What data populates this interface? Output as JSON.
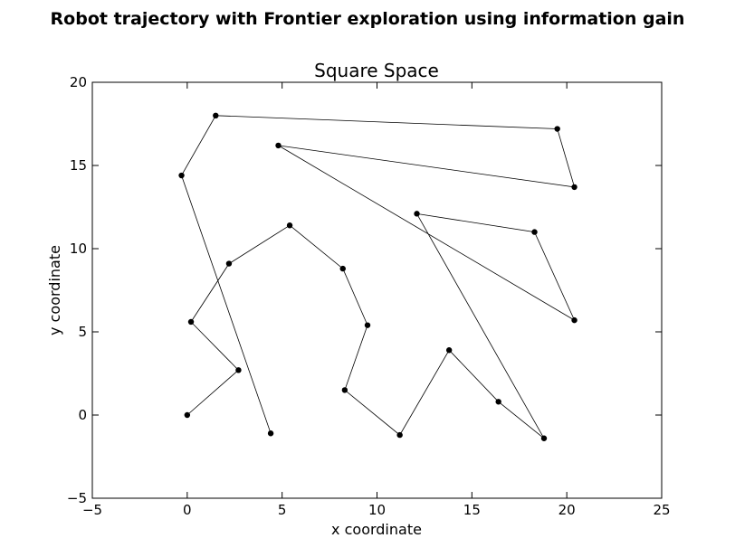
{
  "chart_data": {
    "type": "line",
    "suptitle": "Robot trajectory with Frontier exploration using information gain",
    "title": "Square Space",
    "xlabel": "x coordinate",
    "ylabel": "y coordinate",
    "xlim": [
      -5,
      25
    ],
    "ylim": [
      -5,
      20
    ],
    "xticks": [
      -5,
      0,
      5,
      10,
      15,
      20,
      25
    ],
    "yticks": [
      -5,
      0,
      5,
      10,
      15,
      20
    ],
    "xtick_labels": [
      "−5",
      "0",
      "5",
      "10",
      "15",
      "20",
      "25"
    ],
    "ytick_labels": [
      "−5",
      "0",
      "5",
      "10",
      "15",
      "20"
    ],
    "grid": false,
    "legend": false,
    "colors": {
      "line": "#000000",
      "marker": "#000000",
      "axes": "#000000",
      "background": "#ffffff"
    },
    "series": [
      {
        "x": [
          0.0,
          2.7,
          0.2,
          2.2,
          5.4,
          8.2,
          9.5,
          8.3,
          11.2,
          13.8,
          16.4,
          18.8,
          12.1,
          18.3,
          20.4,
          4.8,
          20.4,
          19.5,
          1.5,
          -0.3,
          4.4
        ],
        "y": [
          0.0,
          2.7,
          5.6,
          9.1,
          11.4,
          8.8,
          5.4,
          1.5,
          -1.2,
          3.9,
          0.8,
          -1.4,
          12.1,
          11.0,
          5.7,
          16.2,
          13.7,
          17.2,
          18.0,
          14.4,
          -1.1
        ]
      }
    ]
  }
}
